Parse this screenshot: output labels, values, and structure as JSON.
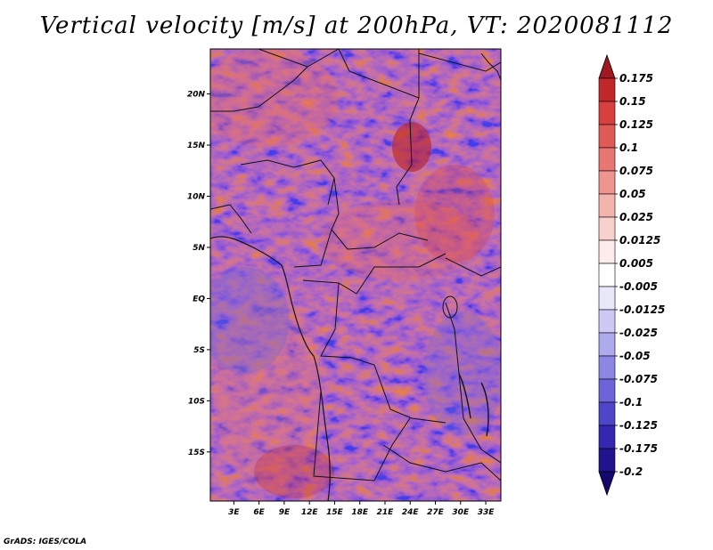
{
  "title": "Vertical velocity [m/s] at 200hPa, VT: 2020081112",
  "credit": "GrADS: IGES/COLA",
  "map": {
    "lat_labels": [
      "20N",
      "15N",
      "10N",
      "5N",
      "EQ",
      "5S",
      "10S",
      "15S"
    ],
    "lat_values": [
      20,
      15,
      10,
      5,
      0,
      -5,
      -10,
      -15
    ],
    "lon_labels": [
      "3E",
      "6E",
      "9E",
      "12E",
      "15E",
      "18E",
      "21E",
      "24E",
      "27E",
      "30E",
      "33E"
    ],
    "lon_values": [
      3,
      6,
      9,
      12,
      15,
      18,
      21,
      24,
      27,
      30,
      33
    ],
    "lat_range": [
      -19.8,
      24.4
    ],
    "lon_range": [
      0.2,
      34.8
    ]
  },
  "colorbar": {
    "labels": [
      "0.175",
      "0.15",
      "0.125",
      "0.1",
      "0.075",
      "0.05",
      "0.025",
      "0.0125",
      "0.005",
      "-0.005",
      "-0.0125",
      "-0.025",
      "-0.05",
      "-0.075",
      "-0.1",
      "-0.125",
      "-0.175",
      "-0.2"
    ],
    "colors": [
      "#a01820",
      "#c0282c",
      "#d84040",
      "#e05a58",
      "#e87672",
      "#ee9590",
      "#f4b4ae",
      "#f8d0cc",
      "#fdeceb",
      "#ffffff",
      "#e8e8fa",
      "#cccaf4",
      "#aeaaee",
      "#8c86e4",
      "#6c64d8",
      "#4e46c8",
      "#3428b0",
      "#20148c",
      "#120870"
    ]
  }
}
